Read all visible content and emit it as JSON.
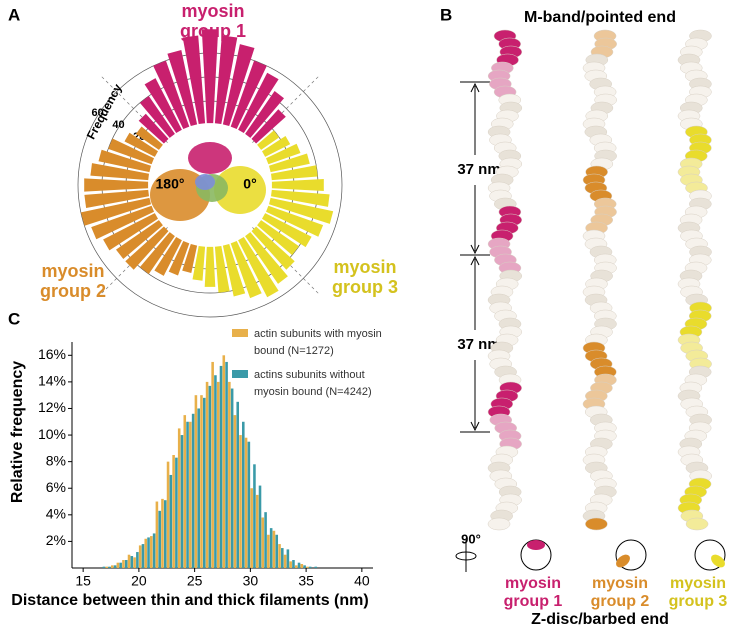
{
  "panels": [
    "A",
    "B",
    "C"
  ],
  "chart_data": [
    {
      "type": "polar-bar",
      "axis_label": "Frequency",
      "rlim": [
        0,
        80
      ],
      "rticks": [
        20,
        40,
        60
      ],
      "angle_labels": [
        {
          "value": 180,
          "label": "180°"
        },
        {
          "value": 0,
          "label": "0°"
        }
      ],
      "groups": [
        {
          "name": "myosin group 1",
          "color": "#c8206e",
          "angles": [
            45,
            52.5,
            60,
            67.5,
            75,
            82.5,
            90,
            97.5,
            105,
            112.5,
            120,
            127.5,
            135
          ],
          "values": [
            35,
            45,
            55,
            60,
            70,
            75,
            80,
            75,
            65,
            60,
            50,
            40,
            30
          ]
        },
        {
          "name": "myosin group 2",
          "color": "#d98c2b",
          "angles": [
            142.5,
            150,
            157.5,
            165,
            172.5,
            180,
            187.5,
            195,
            202.5,
            210,
            217.5,
            225,
            232.5,
            240,
            247.5,
            255
          ],
          "values": [
            25,
            30,
            40,
            45,
            50,
            55,
            55,
            60,
            55,
            50,
            45,
            45,
            40,
            35,
            30,
            25
          ]
        },
        {
          "name": "myosin group 3",
          "color": "#e9dc2c",
          "angles": [
            262.5,
            270,
            277.5,
            285,
            292.5,
            300,
            307.5,
            315,
            322.5,
            330,
            337.5,
            345,
            352.5,
            0,
            7.5,
            15,
            22.5,
            30,
            37.5
          ],
          "values": [
            30,
            35,
            40,
            45,
            50,
            55,
            50,
            45,
            40,
            45,
            50,
            55,
            50,
            45,
            40,
            35,
            30,
            25,
            20
          ]
        }
      ]
    },
    {
      "type": "histogram",
      "xlabel": "Distance between thin and thick filaments (nm)",
      "ylabel": "Relative frequency",
      "xlim": [
        14,
        41
      ],
      "xticks": [
        15,
        20,
        25,
        30,
        35,
        40
      ],
      "ylim": [
        0,
        17
      ],
      "yticks": [
        {
          "value": 2,
          "label": "2%"
        },
        {
          "value": 4,
          "label": "4%"
        },
        {
          "value": 6,
          "label": "6%"
        },
        {
          "value": 8,
          "label": "8%"
        },
        {
          "value": 10,
          "label": "10%"
        },
        {
          "value": 12,
          "label": "12%"
        },
        {
          "value": 14,
          "label": "14%"
        },
        {
          "value": 16,
          "label": "16%"
        }
      ],
      "bins": [
        16,
        16.5,
        17,
        17.5,
        18,
        18.5,
        19,
        19.5,
        20,
        20.5,
        21,
        21.5,
        22,
        22.5,
        23,
        23.5,
        24,
        24.5,
        25,
        25.5,
        26,
        26.5,
        27,
        27.5,
        28,
        28.5,
        29,
        29.5,
        30,
        30.5,
        31,
        31.5,
        32,
        32.5,
        33,
        33.5,
        34,
        34.5,
        35,
        35.5,
        36
      ],
      "series": [
        {
          "name": "actin subunits with myosin bound (N=1272)",
          "color": "#e8b04a",
          "values": [
            0,
            0,
            0.1,
            0.2,
            0.4,
            0.6,
            1.0,
            0.8,
            1.7,
            2.2,
            2.4,
            5.0,
            5.2,
            8.0,
            8.5,
            10.5,
            11.5,
            11.0,
            13.0,
            13.0,
            14.0,
            15.5,
            14.0,
            16.0,
            14.0,
            11.5,
            10.0,
            9.8,
            6.0,
            5.5,
            3.8,
            2.5,
            2.8,
            1.8,
            1.0,
            0.5,
            0.2,
            0.3,
            0.1,
            0
          ]
        },
        {
          "name": "actins subunits without myosin bound (N=4242)",
          "color": "#3a9aa8",
          "values": [
            0,
            0.1,
            0.1,
            0.2,
            0.4,
            0.6,
            0.9,
            1.2,
            1.8,
            2.3,
            2.6,
            4.3,
            5.1,
            7.0,
            8.3,
            10.0,
            11.0,
            11.6,
            12.0,
            12.8,
            13.7,
            14.5,
            15.2,
            15.5,
            13.5,
            12.5,
            11.0,
            9.5,
            7.8,
            6.2,
            4.2,
            3.0,
            2.5,
            1.5,
            1.4,
            0.6,
            0.4,
            0.2,
            0.1,
            0.1
          ]
        }
      ]
    }
  ],
  "panel_b": {
    "top": "M-band/pointed end",
    "bottom": "Z-disc/barbed end",
    "spacings": [
      "37 nm",
      "37 nm"
    ],
    "rotation": "90°",
    "groups": [
      "myosin group 1",
      "myosin group 2",
      "myosin group 3"
    ]
  }
}
